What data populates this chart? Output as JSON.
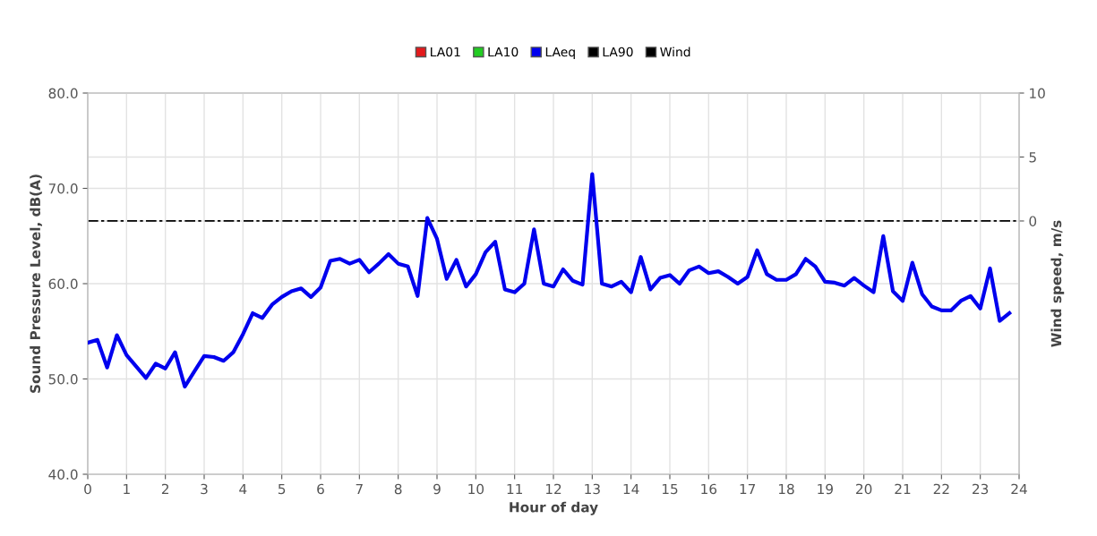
{
  "chart_data": {
    "type": "line",
    "xlabel": "Hour of day",
    "ylabel": "Sound Pressure Level, dB(A)",
    "y2label": "Wind speed, m/s",
    "x": [
      0,
      0.25,
      0.5,
      0.75,
      1,
      1.25,
      1.5,
      1.75,
      2,
      2.25,
      2.5,
      2.75,
      3,
      3.25,
      3.5,
      3.75,
      4,
      4.25,
      4.5,
      4.75,
      5,
      5.25,
      5.5,
      5.75,
      6,
      6.25,
      6.5,
      6.75,
      7,
      7.25,
      7.5,
      7.75,
      8,
      8.25,
      8.5,
      8.75,
      9,
      9.25,
      9.5,
      9.75,
      10,
      10.25,
      10.5,
      10.75,
      11,
      11.25,
      11.5,
      11.75,
      12,
      12.25,
      12.5,
      12.75,
      13,
      13.25,
      13.5,
      13.75,
      14,
      14.25,
      14.5,
      14.75,
      15,
      15.25,
      15.5,
      15.75,
      16,
      16.25,
      16.5,
      16.75,
      17,
      17.25,
      17.5,
      17.75,
      18,
      18.25,
      18.5,
      18.75,
      19,
      19.25,
      19.5,
      19.75,
      20,
      20.25,
      20.5,
      20.75,
      21,
      21.25,
      21.5,
      21.75,
      22,
      22.25,
      22.5,
      22.75,
      23,
      23.25,
      23.5,
      23.75
    ],
    "series": [
      {
        "name": "LA01",
        "color": "#e31a1c",
        "values": [
          null,
          null,
          null,
          null,
          null,
          null,
          null,
          null,
          null,
          null,
          null,
          null,
          null,
          null,
          null,
          null,
          null,
          null,
          null,
          null,
          null,
          null,
          null,
          null,
          null,
          null,
          null,
          null,
          null,
          null,
          null,
          null,
          null,
          null,
          null,
          null,
          null,
          null,
          null,
          null,
          null,
          null,
          null,
          null,
          null,
          null,
          null,
          null,
          null,
          null,
          null,
          null,
          null,
          null,
          null,
          null,
          null,
          null,
          null,
          null,
          null,
          null,
          null,
          null,
          null,
          null,
          null,
          null,
          null,
          null,
          null,
          null,
          null,
          null,
          null,
          null,
          null,
          null,
          null,
          null,
          null,
          null,
          null,
          null,
          null,
          null,
          null,
          null,
          null,
          null,
          null,
          null,
          null,
          null,
          null,
          null
        ]
      },
      {
        "name": "LA10",
        "color": "#22cc22",
        "values": [
          null,
          null,
          null,
          null,
          null,
          null,
          null,
          null,
          null,
          null,
          null,
          null,
          null,
          null,
          null,
          null,
          null,
          null,
          null,
          null,
          null,
          null,
          null,
          null,
          null,
          null,
          null,
          null,
          null,
          null,
          null,
          null,
          null,
          null,
          null,
          null,
          null,
          null,
          null,
          null,
          null,
          null,
          null,
          null,
          null,
          null,
          null,
          null,
          null,
          null,
          null,
          null,
          null,
          null,
          null,
          null,
          null,
          null,
          null,
          null,
          null,
          null,
          null,
          null,
          null,
          null,
          null,
          null,
          null,
          null,
          null,
          null,
          null,
          null,
          null,
          null,
          null,
          null,
          null,
          null,
          null,
          null,
          null,
          null,
          null,
          null,
          null,
          null,
          null,
          null,
          null,
          null,
          null,
          null,
          null,
          null
        ]
      },
      {
        "name": "LAeq",
        "color": "#0000ee",
        "values": [
          53.8,
          54.1,
          51.2,
          54.6,
          52.5,
          51.3,
          50.1,
          51.6,
          51.1,
          52.8,
          49.2,
          50.8,
          52.4,
          52.3,
          51.9,
          52.8,
          54.7,
          56.9,
          56.4,
          57.8,
          58.6,
          59.2,
          59.5,
          58.6,
          59.6,
          62.4,
          62.6,
          62.1,
          62.5,
          61.2,
          62.1,
          63.1,
          62.1,
          61.8,
          58.7,
          66.9,
          64.7,
          60.5,
          62.5,
          59.7,
          61.0,
          63.3,
          64.4,
          59.4,
          59.1,
          60.0,
          65.7,
          60.0,
          59.7,
          61.5,
          60.3,
          59.9,
          71.5,
          60.0,
          59.7,
          60.2,
          59.1,
          62.8,
          59.4,
          60.6,
          60.9,
          60.0,
          61.4,
          61.8,
          61.1,
          61.3,
          60.7,
          60.0,
          60.7,
          63.5,
          61.0,
          60.4,
          60.4,
          61.0,
          62.6,
          61.8,
          60.2,
          60.1,
          59.8,
          60.6,
          59.8,
          59.1,
          65.0,
          59.2,
          58.2,
          62.2,
          58.9,
          57.6,
          57.2,
          57.2,
          58.2,
          58.7,
          57.4,
          61.6,
          56.1,
          56.9
        ]
      },
      {
        "name": "LA90",
        "color": "#000000",
        "values": [
          null,
          null,
          null,
          null,
          null,
          null,
          null,
          null,
          null,
          null,
          null,
          null,
          null,
          null,
          null,
          null,
          null,
          null,
          null,
          null,
          null,
          null,
          null,
          null,
          null,
          null,
          null,
          null,
          null,
          null,
          null,
          null,
          null,
          null,
          null,
          null,
          null,
          null,
          null,
          null,
          null,
          null,
          null,
          null,
          null,
          null,
          null,
          null,
          null,
          null,
          null,
          null,
          null,
          null,
          null,
          null,
          null,
          null,
          null,
          null,
          null,
          null,
          null,
          null,
          null,
          null,
          null,
          null,
          null,
          null,
          null,
          null,
          null,
          null,
          null,
          null,
          null,
          null,
          null,
          null,
          null,
          null,
          null,
          null,
          null,
          null,
          null,
          null,
          null,
          null,
          null,
          null,
          null,
          null,
          null,
          null
        ]
      },
      {
        "name": "Wind",
        "color": "#000000",
        "axis": "y2",
        "line_style": "dashdot",
        "x": [
          0,
          24
        ],
        "values": [
          0,
          0
        ]
      }
    ],
    "xlim": [
      0,
      24
    ],
    "xticks": [
      0,
      1,
      2,
      3,
      4,
      5,
      6,
      7,
      8,
      9,
      10,
      11,
      12,
      13,
      14,
      15,
      16,
      17,
      18,
      19,
      20,
      21,
      22,
      23,
      24
    ],
    "ylim": [
      40,
      80
    ],
    "yticks": [
      {
        "value": 40,
        "label": "40.0"
      },
      {
        "value": 50,
        "label": "50.0"
      },
      {
        "value": 60,
        "label": "60.0"
      },
      {
        "value": 70,
        "label": "70.0"
      },
      {
        "value": 80,
        "label": "80.0"
      }
    ],
    "y2lim": [
      -19.8,
      10
    ],
    "y2ticks": [
      0,
      5,
      10
    ],
    "grid": true,
    "legend": "top",
    "line_style": "solid",
    "marker": "none"
  }
}
